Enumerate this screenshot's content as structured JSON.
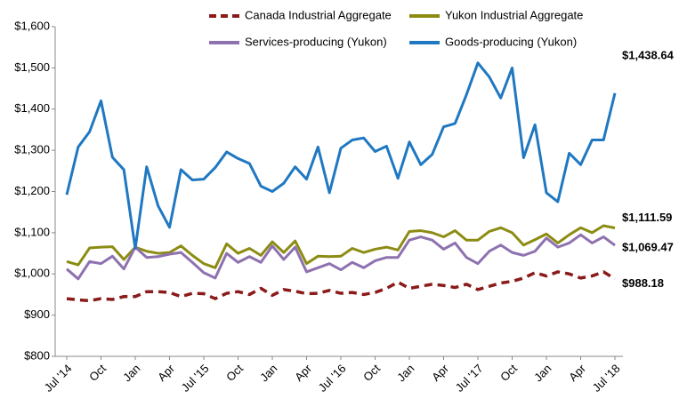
{
  "chart_data": {
    "type": "line",
    "categories": [
      "Jul '14",
      null,
      null,
      "Oct",
      null,
      null,
      "Jan",
      null,
      null,
      "Apr",
      null,
      null,
      "Jul '15",
      null,
      null,
      "Oct",
      null,
      null,
      "Jan",
      null,
      null,
      "Apr",
      null,
      null,
      "Jul '16",
      null,
      null,
      "Oct",
      null,
      null,
      "Jan",
      null,
      null,
      "Apr",
      null,
      null,
      "Jul '17",
      null,
      null,
      "Oct",
      null,
      null,
      "Jan",
      null,
      null,
      "Apr",
      null,
      null,
      "Jul '18"
    ],
    "series": [
      {
        "name": "Canada Industrial Aggregate",
        "color": "#8b1a1a",
        "style": "dashed",
        "values": [
          940,
          937,
          935,
          940,
          938,
          945,
          945,
          957,
          957,
          955,
          945,
          953,
          952,
          940,
          953,
          957,
          950,
          965,
          948,
          962,
          958,
          952,
          953,
          960,
          953,
          955,
          950,
          955,
          965,
          980,
          965,
          970,
          975,
          972,
          967,
          975,
          962,
          970,
          978,
          982,
          990,
          1003,
          995,
          1005,
          1000,
          990,
          995,
          1005,
          988.18
        ],
        "value_labels": [
          null,
          null,
          null,
          null,
          null,
          null,
          null,
          null,
          null,
          null,
          null,
          null,
          null,
          null,
          null,
          null,
          null,
          null,
          null,
          null,
          null,
          null,
          null,
          null,
          null,
          null,
          null,
          null,
          null,
          null,
          null,
          null,
          null,
          null,
          null,
          null,
          null,
          null,
          null,
          null,
          null,
          null,
          null,
          null,
          null,
          null,
          null,
          null,
          "$988.18"
        ]
      },
      {
        "name": "Yukon Industrial Aggregate",
        "color": "#8c8c14",
        "style": "solid",
        "values": [
          1030,
          1022,
          1063,
          1065,
          1066,
          1035,
          1065,
          1055,
          1050,
          1052,
          1068,
          1045,
          1025,
          1015,
          1073,
          1050,
          1062,
          1045,
          1078,
          1052,
          1080,
          1025,
          1043,
          1042,
          1043,
          1062,
          1052,
          1060,
          1065,
          1058,
          1103,
          1105,
          1100,
          1090,
          1105,
          1082,
          1082,
          1103,
          1112,
          1100,
          1070,
          1083,
          1097,
          1075,
          1095,
          1112,
          1100,
          1117,
          1111.59
        ],
        "value_labels": [
          null,
          null,
          null,
          null,
          null,
          null,
          null,
          null,
          null,
          null,
          null,
          null,
          null,
          null,
          null,
          null,
          null,
          null,
          null,
          null,
          null,
          null,
          null,
          null,
          null,
          null,
          null,
          null,
          null,
          null,
          null,
          null,
          null,
          null,
          null,
          null,
          null,
          null,
          null,
          null,
          null,
          null,
          null,
          null,
          null,
          null,
          null,
          null,
          "$1,111.59"
        ]
      },
      {
        "name": "Services-producing (Yukon)",
        "color": "#8e72b0",
        "style": "solid",
        "values": [
          1012,
          988,
          1030,
          1025,
          1043,
          1012,
          1065,
          1040,
          1042,
          1048,
          1052,
          1028,
          1003,
          990,
          1050,
          1028,
          1042,
          1028,
          1068,
          1035,
          1065,
          1005,
          1015,
          1025,
          1010,
          1028,
          1015,
          1032,
          1040,
          1040,
          1082,
          1090,
          1082,
          1060,
          1075,
          1040,
          1025,
          1055,
          1070,
          1052,
          1045,
          1055,
          1087,
          1065,
          1075,
          1095,
          1075,
          1090,
          1069.47
        ],
        "value_labels": [
          null,
          null,
          null,
          null,
          null,
          null,
          null,
          null,
          null,
          null,
          null,
          null,
          null,
          null,
          null,
          null,
          null,
          null,
          null,
          null,
          null,
          null,
          null,
          null,
          null,
          null,
          null,
          null,
          null,
          null,
          null,
          null,
          null,
          null,
          null,
          null,
          null,
          null,
          null,
          null,
          null,
          null,
          null,
          null,
          null,
          null,
          null,
          null,
          "$1,069.47"
        ]
      },
      {
        "name": "Goods-producing (Yukon)",
        "color": "#1f78c1",
        "style": "solid",
        "values": [
          1192,
          1308,
          1345,
          1420,
          1283,
          1253,
          1062,
          1260,
          1165,
          1113,
          1253,
          1228,
          1230,
          1258,
          1296,
          1280,
          1268,
          1213,
          1200,
          1220,
          1260,
          1230,
          1308,
          1197,
          1305,
          1325,
          1330,
          1297,
          1310,
          1232,
          1320,
          1265,
          1290,
          1357,
          1365,
          1435,
          1512,
          1478,
          1427,
          1500,
          1282,
          1362,
          1197,
          1175,
          1293,
          1265,
          1325,
          1325,
          1438.64
        ],
        "value_labels": [
          null,
          null,
          null,
          null,
          null,
          null,
          null,
          null,
          null,
          null,
          null,
          null,
          null,
          null,
          null,
          null,
          null,
          null,
          null,
          null,
          null,
          null,
          null,
          null,
          null,
          null,
          null,
          null,
          null,
          null,
          null,
          null,
          null,
          null,
          null,
          null,
          null,
          null,
          null,
          null,
          null,
          null,
          null,
          null,
          null,
          null,
          null,
          null,
          "$1,438.64"
        ]
      }
    ],
    "ylim": [
      800,
      1600
    ],
    "yticks": [
      {
        "value": 800,
        "label": "$800"
      },
      {
        "value": 900,
        "label": "$900"
      },
      {
        "value": 1000,
        "label": "$1,000"
      },
      {
        "value": 1100,
        "label": "$1,100"
      },
      {
        "value": 1200,
        "label": "$1,200"
      },
      {
        "value": 1300,
        "label": "$1,300"
      },
      {
        "value": 1400,
        "label": "$1,400"
      },
      {
        "value": 1500,
        "label": "$1,500"
      },
      {
        "value": 1600,
        "label": "$1,600"
      }
    ],
    "grid": false,
    "legend": "top"
  }
}
